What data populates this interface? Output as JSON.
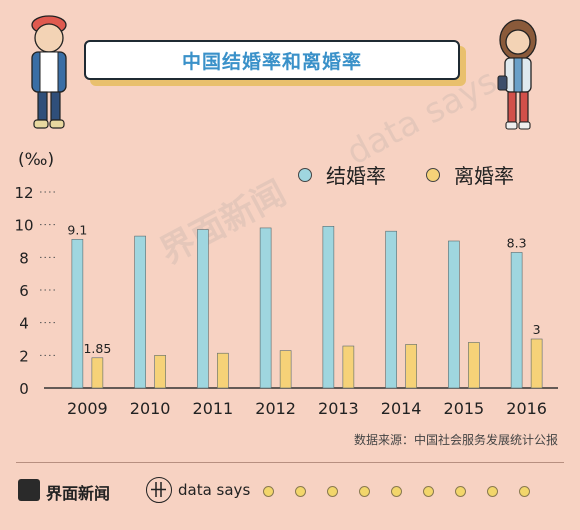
{
  "title": "中国结婚率和离婚率",
  "unit": "(‰)",
  "legend": [
    {
      "label": "结婚率",
      "color": "#9fd6df"
    },
    {
      "label": "离婚率",
      "color": "#f6d278"
    }
  ],
  "source": "数据来源：中国社会服务发展统计公报",
  "footer": {
    "brand": "界面新闻",
    "datasays": "data says"
  },
  "watermark": {
    "brand": "界面新闻",
    "datasays": "data says"
  },
  "chart_data": {
    "type": "bar",
    "categories": [
      "2009",
      "2010",
      "2011",
      "2012",
      "2013",
      "2014",
      "2015",
      "2016"
    ],
    "series": [
      {
        "name": "结婚率",
        "values": [
          9.1,
          9.3,
          9.7,
          9.8,
          9.9,
          9.6,
          9.0,
          8.3
        ],
        "color": "#9fd6df"
      },
      {
        "name": "离婚率",
        "values": [
          1.85,
          2.0,
          2.13,
          2.29,
          2.57,
          2.67,
          2.79,
          3.0
        ],
        "color": "#f6d278"
      }
    ],
    "data_labels": [
      {
        "series": 0,
        "index": 0,
        "text": "9.1"
      },
      {
        "series": 1,
        "index": 0,
        "text": "1.85"
      },
      {
        "series": 0,
        "index": 7,
        "text": "8.3"
      },
      {
        "series": 1,
        "index": 7,
        "text": "3"
      }
    ],
    "yticks": [
      0,
      2,
      4,
      6,
      8,
      10,
      12
    ],
    "ylim": [
      0,
      12
    ],
    "legend_position": "top-right"
  }
}
